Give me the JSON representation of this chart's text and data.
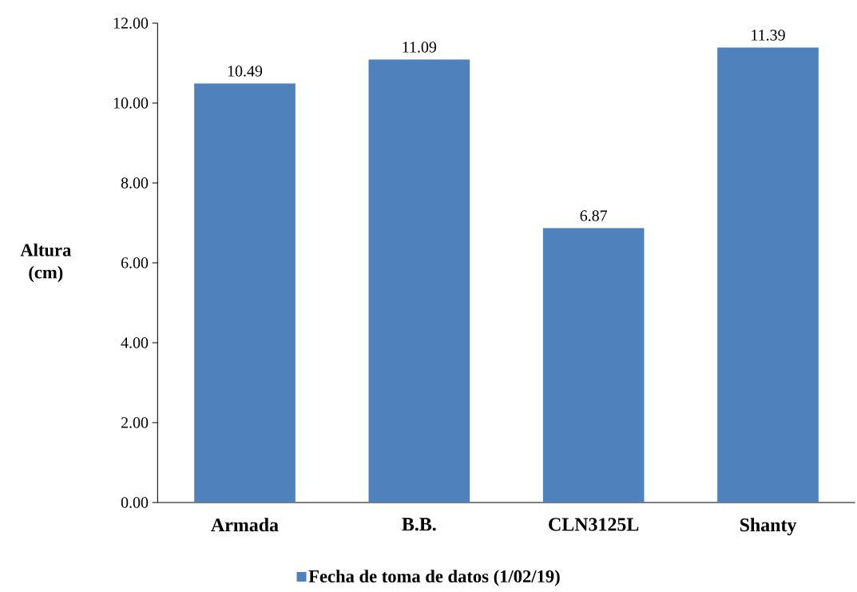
{
  "chart_data": {
    "type": "bar",
    "ylabel": "Altura (cm)",
    "categories": [
      "Armada",
      "B.B.",
      "CLN3125L",
      "Shanty"
    ],
    "series": [
      {
        "name": "Fecha de toma de datos (1/02/19)",
        "color": "#4f81bd",
        "values": [
          10.49,
          11.09,
          6.87,
          11.39
        ]
      }
    ],
    "ylim": [
      0,
      12
    ],
    "yticks": [
      {
        "value": 0,
        "label": "0.00"
      },
      {
        "value": 2,
        "label": "2.00"
      },
      {
        "value": 4,
        "label": "4.00"
      },
      {
        "value": 6,
        "label": "6.00"
      },
      {
        "value": 8,
        "label": "8.00"
      },
      {
        "value": 10,
        "label": "10.00"
      },
      {
        "value": 12,
        "label": "12.00"
      }
    ],
    "data_labels": true,
    "grid": false,
    "legend": "bottom"
  }
}
